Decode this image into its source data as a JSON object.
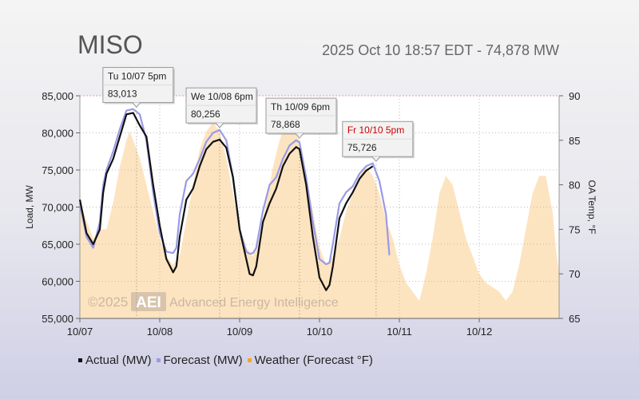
{
  "header": {
    "title": "MISO",
    "status": "2025 Oct 10 18:57 EDT - 74,878 MW"
  },
  "watermark": "©2025 AEI Advanced Energy Intelligence",
  "legend": [
    {
      "label": "Actual (MW)",
      "color": "#111111"
    },
    {
      "label": "Forecast (MW)",
      "color": "#9a9ae6"
    },
    {
      "label": "Weather (Forecast °F)",
      "color": "#f5a623"
    }
  ],
  "chart_data": {
    "type": "line",
    "ylabel": "Load, MW",
    "y2label": "OA Temp, °F",
    "xlim": [
      0,
      144
    ],
    "ylim": [
      55000,
      85000
    ],
    "y2lim": [
      65,
      90
    ],
    "x_ticks": [
      {
        "x": 0,
        "label": "10/07"
      },
      {
        "x": 24,
        "label": "10/08"
      },
      {
        "x": 48,
        "label": "10/09"
      },
      {
        "x": 72,
        "label": "10/10"
      },
      {
        "x": 96,
        "label": "10/11"
      },
      {
        "x": 120,
        "label": "10/12"
      }
    ],
    "y_ticks": [
      55000,
      60000,
      65000,
      70000,
      75000,
      80000,
      85000
    ],
    "y_tick_labels": [
      "55,000",
      "60,000",
      "65,000",
      "70,000",
      "75,000",
      "80,000",
      "85,000"
    ],
    "y2_ticks": [
      65,
      70,
      75,
      80,
      85,
      90
    ],
    "series": [
      {
        "name": "Actual (MW)",
        "color": "#111111",
        "points": [
          [
            0,
            71000
          ],
          [
            2,
            66500
          ],
          [
            4,
            65000
          ],
          [
            6,
            67000
          ],
          [
            7,
            72000
          ],
          [
            8,
            74500
          ],
          [
            10,
            76500
          ],
          [
            12,
            79500
          ],
          [
            14,
            82500
          ],
          [
            16,
            82700
          ],
          [
            18,
            81000
          ],
          [
            20,
            79500
          ],
          [
            22,
            73000
          ],
          [
            24,
            67500
          ],
          [
            26,
            63000
          ],
          [
            28,
            61200
          ],
          [
            29,
            62000
          ],
          [
            30,
            66000
          ],
          [
            32,
            71000
          ],
          [
            34,
            72500
          ],
          [
            36,
            75500
          ],
          [
            38,
            77800
          ],
          [
            40,
            78800
          ],
          [
            42,
            79100
          ],
          [
            44,
            78000
          ],
          [
            46,
            74000
          ],
          [
            48,
            67000
          ],
          [
            50,
            63000
          ],
          [
            51,
            61000
          ],
          [
            52,
            60800
          ],
          [
            53,
            62000
          ],
          [
            55,
            68000
          ],
          [
            57,
            70500
          ],
          [
            59,
            72500
          ],
          [
            61,
            75500
          ],
          [
            63,
            77200
          ],
          [
            65,
            78100
          ],
          [
            66,
            77800
          ],
          [
            68,
            73000
          ],
          [
            70,
            66000
          ],
          [
            72,
            60500
          ],
          [
            74,
            58800
          ],
          [
            75,
            59500
          ],
          [
            76,
            62000
          ],
          [
            78,
            68500
          ],
          [
            80,
            70500
          ],
          [
            82,
            72000
          ],
          [
            84,
            73800
          ],
          [
            86,
            74900
          ],
          [
            88,
            75500
          ]
        ]
      },
      {
        "name": "Forecast (MW)",
        "color": "#9a9ae6",
        "points": [
          [
            0,
            70500
          ],
          [
            2,
            66000
          ],
          [
            4,
            64500
          ],
          [
            6,
            68000
          ],
          [
            7,
            73000
          ],
          [
            8,
            75000
          ],
          [
            10,
            77500
          ],
          [
            12,
            80500
          ],
          [
            14,
            83000
          ],
          [
            16,
            83200
          ],
          [
            18,
            82500
          ],
          [
            20,
            79000
          ],
          [
            22,
            72000
          ],
          [
            24,
            66500
          ],
          [
            26,
            64000
          ],
          [
            28,
            63800
          ],
          [
            29,
            64500
          ],
          [
            30,
            69000
          ],
          [
            32,
            73500
          ],
          [
            34,
            74500
          ],
          [
            36,
            76500
          ],
          [
            38,
            78800
          ],
          [
            40,
            80000
          ],
          [
            42,
            80400
          ],
          [
            44,
            79000
          ],
          [
            46,
            74000
          ],
          [
            48,
            67000
          ],
          [
            50,
            64000
          ],
          [
            51,
            63700
          ],
          [
            52,
            63800
          ],
          [
            53,
            64500
          ],
          [
            55,
            69500
          ],
          [
            57,
            73000
          ],
          [
            59,
            74000
          ],
          [
            61,
            76500
          ],
          [
            63,
            78300
          ],
          [
            65,
            79000
          ],
          [
            66,
            78700
          ],
          [
            68,
            74000
          ],
          [
            70,
            68000
          ],
          [
            72,
            63000
          ],
          [
            74,
            62300
          ],
          [
            75,
            62500
          ],
          [
            76,
            65000
          ],
          [
            78,
            70500
          ],
          [
            80,
            72000
          ],
          [
            82,
            72800
          ],
          [
            84,
            74500
          ],
          [
            86,
            75500
          ],
          [
            88,
            75900
          ],
          [
            90,
            73500
          ],
          [
            92,
            69000
          ],
          [
            93,
            63500
          ]
        ]
      },
      {
        "name": "Weather (Forecast °F)",
        "color": "#f5a623",
        "area": true,
        "points": [
          [
            0,
            78
          ],
          [
            2,
            76
          ],
          [
            4,
            74
          ],
          [
            6,
            75
          ],
          [
            8,
            75
          ],
          [
            10,
            78
          ],
          [
            12,
            82
          ],
          [
            14,
            85
          ],
          [
            15,
            86
          ],
          [
            16,
            85
          ],
          [
            18,
            83
          ],
          [
            20,
            80
          ],
          [
            22,
            77
          ],
          [
            24,
            74
          ],
          [
            26,
            72
          ],
          [
            28,
            71
          ],
          [
            30,
            72
          ],
          [
            32,
            76
          ],
          [
            34,
            80
          ],
          [
            36,
            84
          ],
          [
            38,
            86
          ],
          [
            40,
            87
          ],
          [
            42,
            86
          ],
          [
            44,
            83
          ],
          [
            46,
            79
          ],
          [
            48,
            75
          ],
          [
            50,
            73
          ],
          [
            52,
            72
          ],
          [
            54,
            74
          ],
          [
            56,
            78
          ],
          [
            58,
            82
          ],
          [
            60,
            85
          ],
          [
            62,
            87
          ],
          [
            64,
            87
          ],
          [
            66,
            85
          ],
          [
            68,
            81
          ],
          [
            70,
            77
          ],
          [
            72,
            73
          ],
          [
            74,
            71
          ],
          [
            76,
            72
          ],
          [
            78,
            74
          ],
          [
            80,
            77
          ],
          [
            82,
            79
          ],
          [
            84,
            81
          ],
          [
            86,
            82
          ],
          [
            88,
            81
          ],
          [
            90,
            79
          ],
          [
            92,
            76
          ],
          [
            94,
            74
          ],
          [
            96,
            71
          ],
          [
            98,
            69
          ],
          [
            100,
            68
          ],
          [
            102,
            67
          ],
          [
            104,
            70
          ],
          [
            106,
            74
          ],
          [
            108,
            79
          ],
          [
            110,
            81
          ],
          [
            112,
            80
          ],
          [
            114,
            77
          ],
          [
            116,
            74
          ],
          [
            118,
            72
          ],
          [
            120,
            70
          ],
          [
            122,
            69
          ],
          [
            124,
            68.5
          ],
          [
            126,
            68
          ],
          [
            128,
            67
          ],
          [
            130,
            68
          ],
          [
            132,
            71
          ],
          [
            134,
            75
          ],
          [
            136,
            79
          ],
          [
            138,
            81
          ],
          [
            140,
            81
          ],
          [
            142,
            77
          ],
          [
            143,
            73
          ],
          [
            144,
            70
          ]
        ]
      }
    ],
    "callouts": [
      {
        "label": "Tu 10/07 5pm",
        "value": "83,013",
        "x": 17,
        "y": 83013,
        "highlight": false
      },
      {
        "label": "We 10/08 6pm",
        "value": "80,256",
        "x": 42,
        "y": 80256,
        "highlight": false
      },
      {
        "label": "Th 10/09 6pm",
        "value": "78,868",
        "x": 66,
        "y": 78868,
        "highlight": false
      },
      {
        "label": "Fr 10/10 5pm",
        "value": "75,726",
        "x": 89,
        "y": 75726,
        "highlight": true
      }
    ]
  }
}
